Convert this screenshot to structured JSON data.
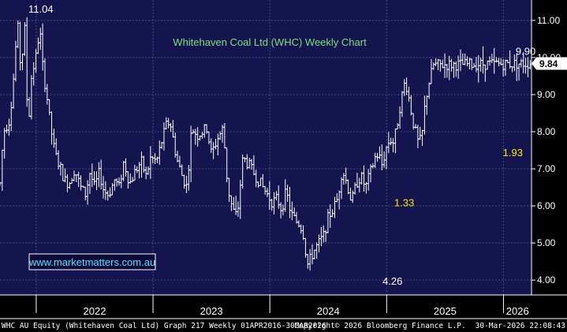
{
  "chart_data": {
    "type": "ohlc",
    "title": "Whitehaven Coal Ltd (WHC) Weekly Chart",
    "website": "www.marketmatters.com.au",
    "y_ticks": [
      "11.00",
      "10.00",
      "9.00",
      "8.00",
      "7.00",
      "6.00",
      "5.00",
      "4.00"
    ],
    "ylim": [
      3.6,
      11.55
    ],
    "grid": true,
    "x_years": [
      "2022",
      "2023",
      "2024",
      "2025",
      "2026"
    ],
    "xlim": [
      2021.69,
      2026.24
    ],
    "last_price": "9.84",
    "annotations": [
      {
        "text": "11.04",
        "x": 2022.04,
        "y": 11.04,
        "kind": "high"
      },
      {
        "text": "4.26",
        "x": 2025.05,
        "y": 4.26,
        "kind": "low"
      },
      {
        "text": "9.90",
        "x": 2026.19,
        "y": 9.9,
        "kind": "high"
      },
      {
        "text": "1.33",
        "x": 2025.15,
        "y": 6.1,
        "kind": "move"
      },
      {
        "text": "1.93",
        "x": 2026.08,
        "y": 7.45,
        "kind": "move"
      }
    ],
    "anchors": [
      [
        2021.69,
        6.6
      ],
      [
        2021.72,
        8.0
      ],
      [
        2021.77,
        8.3
      ],
      [
        2021.8,
        9.2
      ],
      [
        2021.84,
        10.95
      ],
      [
        2021.87,
        9.6
      ],
      [
        2021.9,
        10.9
      ],
      [
        2021.93,
        8.0
      ],
      [
        2021.96,
        9.5
      ],
      [
        2022.0,
        10.05
      ],
      [
        2022.03,
        10.8
      ],
      [
        2022.06,
        9.6
      ],
      [
        2022.09,
        9.0
      ],
      [
        2022.12,
        8.2
      ],
      [
        2022.16,
        7.4
      ],
      [
        2022.2,
        7.1
      ],
      [
        2022.24,
        6.7
      ],
      [
        2022.28,
        6.6
      ],
      [
        2022.33,
        7.0
      ],
      [
        2022.38,
        6.5
      ],
      [
        2022.42,
        6.3
      ],
      [
        2022.46,
        6.9
      ],
      [
        2022.5,
        6.5
      ],
      [
        2022.54,
        6.9
      ],
      [
        2022.58,
        6.4
      ],
      [
        2022.62,
        6.3
      ],
      [
        2022.67,
        6.7
      ],
      [
        2022.71,
        6.5
      ],
      [
        2022.75,
        7.2
      ],
      [
        2022.8,
        6.6
      ],
      [
        2022.85,
        6.95
      ],
      [
        2022.9,
        7.2
      ],
      [
        2022.94,
        6.8
      ],
      [
        2022.98,
        7.3
      ],
      [
        2023.03,
        7.2
      ],
      [
        2023.08,
        7.8
      ],
      [
        2023.12,
        8.25
      ],
      [
        2023.15,
        8.2
      ],
      [
        2023.2,
        7.3
      ],
      [
        2023.25,
        6.8
      ],
      [
        2023.29,
        6.5
      ],
      [
        2023.33,
        8.1
      ],
      [
        2023.38,
        7.9
      ],
      [
        2023.42,
        8.0
      ],
      [
        2023.46,
        8.1
      ],
      [
        2023.5,
        7.4
      ],
      [
        2023.55,
        7.8
      ],
      [
        2023.6,
        8.1
      ],
      [
        2023.64,
        6.5
      ],
      [
        2023.68,
        5.9
      ],
      [
        2023.72,
        5.7
      ],
      [
        2023.77,
        7.3
      ],
      [
        2023.82,
        7.1
      ],
      [
        2023.86,
        6.9
      ],
      [
        2023.9,
        6.7
      ],
      [
        2023.94,
        6.5
      ],
      [
        2023.98,
        6.3
      ],
      [
        2024.02,
        6.1
      ],
      [
        2024.06,
        6.2
      ],
      [
        2024.1,
        5.9
      ],
      [
        2024.14,
        6.4
      ],
      [
        2024.18,
        5.8
      ],
      [
        2024.22,
        5.6
      ],
      [
        2024.26,
        5.5
      ],
      [
        2024.29,
        5.2
      ],
      [
        2024.32,
        4.4
      ],
      [
        2024.35,
        4.6
      ],
      [
        2024.38,
        4.8
      ],
      [
        2024.42,
        5.0
      ],
      [
        2024.46,
        5.2
      ],
      [
        2024.5,
        5.7
      ],
      [
        2024.54,
        5.9
      ],
      [
        2024.58,
        6.2
      ],
      [
        2024.62,
        7.0
      ],
      [
        2024.66,
        6.6
      ],
      [
        2024.7,
        6.1
      ],
      [
        2024.74,
        6.6
      ],
      [
        2024.78,
        6.8
      ],
      [
        2024.82,
        6.5
      ],
      [
        2024.86,
        6.9
      ],
      [
        2024.9,
        7.3
      ],
      [
        2024.93,
        7.4
      ],
      [
        2024.96,
        7.1
      ],
      [
        2025.0,
        7.6
      ],
      [
        2025.03,
        7.8
      ],
      [
        2025.06,
        7.7
      ],
      [
        2025.09,
        8.2
      ],
      [
        2025.12,
        8.8
      ],
      [
        2025.16,
        9.4
      ],
      [
        2025.19,
        8.9
      ],
      [
        2025.23,
        8.2
      ],
      [
        2025.27,
        7.7
      ],
      [
        2025.3,
        7.8
      ],
      [
        2025.33,
        8.8
      ],
      [
        2025.36,
        9.3
      ],
      [
        2025.4,
        9.8
      ],
      [
        2026.24,
        9.84
      ]
    ]
  },
  "footer": {
    "left": "WHC AU Equity (Whitehaven Coal Ltd) Graph 217 Weekly 01APR2016-30MAR2026",
    "center": "Copyright© 2026 Bloomberg Finance L.P.",
    "right": "30-Mar-2026 22:08:43"
  }
}
